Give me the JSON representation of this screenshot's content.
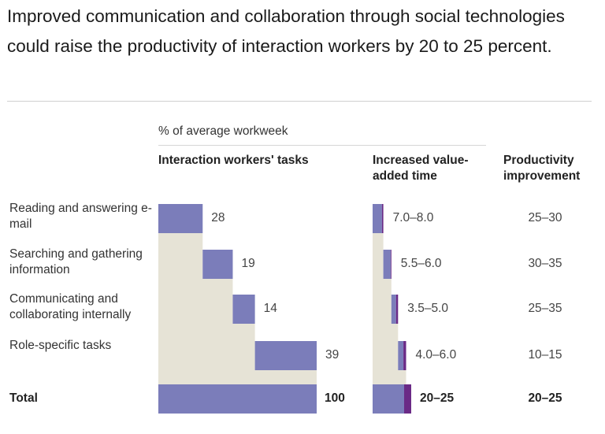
{
  "headline": "Improved communication and collaboration through social technologies could raise the productivity of interaction workers by 20 to 25 percent.",
  "colors": {
    "bar": "#7b7dba",
    "background_area": "#e6e3d6",
    "accent": "#6a2a86",
    "rule": "#cfcfcf"
  },
  "chart_data": {
    "type": "bar",
    "unit_label": "% of average workweek",
    "column_headers": {
      "tasks": "Interaction workers' tasks",
      "value_added": "Increased value-added time",
      "productivity": "Productivity improvement"
    },
    "categories": [
      "Reading and answering e-mail",
      "Searching and gathering information",
      "Communicating and collaborating internally",
      "Role-specific tasks"
    ],
    "tasks_share": [
      28,
      19,
      14,
      39
    ],
    "tasks_share_labels": [
      "28",
      "19",
      "14",
      "39"
    ],
    "value_added_min": [
      7.0,
      5.5,
      3.5,
      4.0
    ],
    "value_added_max": [
      8.0,
      6.0,
      5.0,
      6.0
    ],
    "value_added_labels": [
      "7.0–8.0",
      "5.5–6.0",
      "3.5–5.0",
      "4.0–6.0"
    ],
    "productivity_labels": [
      "25–30",
      "30–35",
      "25–35",
      "10–15"
    ],
    "total": {
      "label": "Total",
      "tasks_share": 100,
      "tasks_share_label": "100",
      "value_added_min": 20,
      "value_added_max": 25,
      "value_added_label": "20–25",
      "productivity_label": "20–25"
    },
    "stacked_waterfall": true
  }
}
